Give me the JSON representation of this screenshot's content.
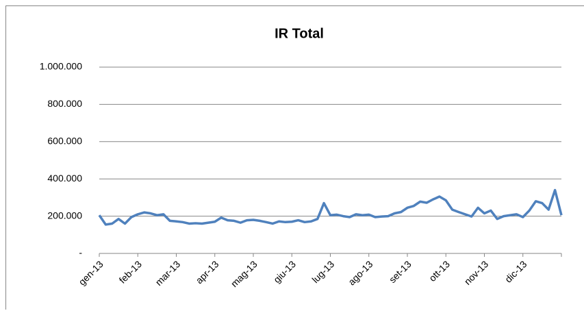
{
  "chart_data": {
    "type": "line",
    "title": "IR Total",
    "categories": [
      "gen-13",
      null,
      null,
      null,
      null,
      null,
      "feb-13",
      null,
      null,
      null,
      null,
      null,
      "mar-13",
      null,
      null,
      null,
      null,
      null,
      "apr-13",
      null,
      null,
      null,
      null,
      null,
      "mag-13",
      null,
      null,
      null,
      null,
      null,
      "giu-13",
      null,
      null,
      null,
      null,
      null,
      "lug-13",
      null,
      null,
      null,
      null,
      null,
      "ago-13",
      null,
      null,
      null,
      null,
      null,
      "set-13",
      null,
      null,
      null,
      null,
      null,
      "ott-13",
      null,
      null,
      null,
      null,
      null,
      "nov-13",
      null,
      null,
      null,
      null,
      null,
      "dic-13",
      null,
      null,
      null,
      null,
      null,
      null
    ],
    "series": [
      {
        "name": "IR Total",
        "color": "#4f81bd",
        "values": [
          205000,
          155000,
          160000,
          185000,
          160000,
          195000,
          210000,
          220000,
          215000,
          205000,
          210000,
          175000,
          172000,
          168000,
          160000,
          162000,
          160000,
          165000,
          170000,
          192000,
          178000,
          175000,
          165000,
          178000,
          180000,
          175000,
          168000,
          160000,
          172000,
          168000,
          170000,
          178000,
          168000,
          172000,
          185000,
          270000,
          205000,
          208000,
          200000,
          195000,
          210000,
          205000,
          208000,
          195000,
          198000,
          200000,
          215000,
          222000,
          245000,
          255000,
          278000,
          272000,
          290000,
          305000,
          285000,
          235000,
          222000,
          210000,
          198000,
          245000,
          215000,
          230000,
          185000,
          200000,
          205000,
          210000,
          195000,
          230000,
          280000,
          270000,
          235000,
          340000,
          205000
        ]
      }
    ],
    "ylim": [
      0,
      1000000
    ],
    "yticks": [
      {
        "value": 0,
        "label": "-"
      },
      {
        "value": 200000,
        "label": "200.000"
      },
      {
        "value": 400000,
        "label": "400.000"
      },
      {
        "value": 600000,
        "label": "600.000"
      },
      {
        "value": 800000,
        "label": "800.000"
      },
      {
        "value": 1000000,
        "label": "1.000.000"
      }
    ],
    "grid": true
  }
}
